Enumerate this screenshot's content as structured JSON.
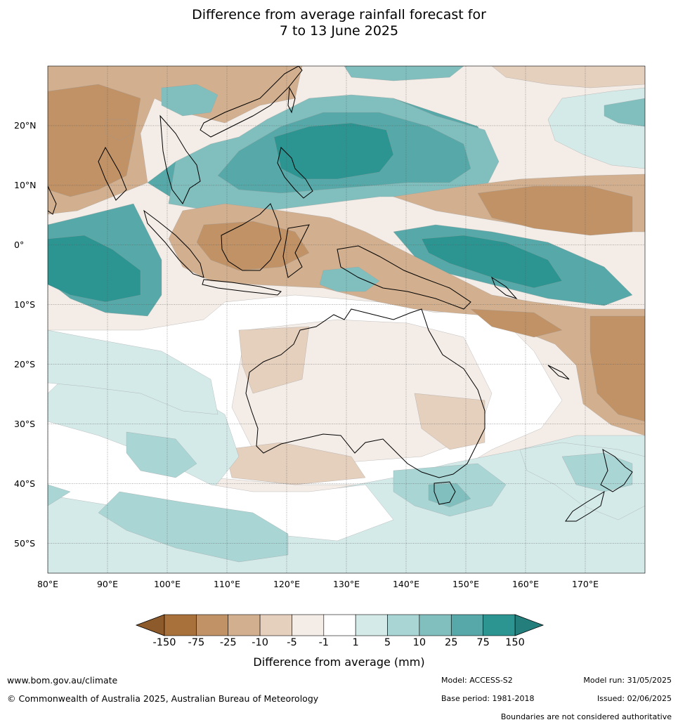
{
  "title": {
    "line1": "Difference from average rainfall forecast for",
    "line2": "7 to 13 June 2025"
  },
  "map": {
    "lon_range": [
      80,
      180
    ],
    "lat_range": [
      -55,
      30
    ],
    "lat_labels": [
      {
        "lat": 20,
        "text": "20°N"
      },
      {
        "lat": 10,
        "text": "10°N"
      },
      {
        "lat": 0,
        "text": "0°"
      },
      {
        "lat": -10,
        "text": "10°S"
      },
      {
        "lat": -20,
        "text": "20°S"
      },
      {
        "lat": -30,
        "text": "30°S"
      },
      {
        "lat": -40,
        "text": "40°S"
      },
      {
        "lat": -50,
        "text": "50°S"
      }
    ],
    "lon_labels": [
      {
        "lon": 80,
        "text": "80°E"
      },
      {
        "lon": 90,
        "text": "90°E"
      },
      {
        "lon": 100,
        "text": "100°E"
      },
      {
        "lon": 110,
        "text": "110°E"
      },
      {
        "lon": 120,
        "text": "120°E"
      },
      {
        "lon": 130,
        "text": "130°E"
      },
      {
        "lon": 140,
        "text": "140°E"
      },
      {
        "lon": 150,
        "text": "150°E"
      },
      {
        "lon": 160,
        "text": "160°E"
      },
      {
        "lon": 170,
        "text": "170°E"
      }
    ],
    "grid": true
  },
  "colorbar": {
    "title": "Difference from average (mm)",
    "ticks": [
      "-150",
      "-75",
      "-25",
      "-10",
      "-5",
      "-1",
      "1",
      "5",
      "10",
      "25",
      "75",
      "150"
    ],
    "colors": [
      "#a8703a",
      "#c09266",
      "#d2b08f",
      "#e5cfbd",
      "#f4ece6",
      "#ffffff",
      "#d4eae9",
      "#a9d5d4",
      "#80bfbe",
      "#56a9a8",
      "#2c9592"
    ],
    "extend_low_color": "#8c5a2b",
    "extend_high_color": "#247f7c"
  },
  "footer": {
    "website": "www.bom.gov.au/climate",
    "copyright": "© Commonwealth of Australia 2025, Australian Bureau of Meteorology",
    "model": "Model: ACCESS-S2",
    "base_period": "Base period: 1981-2018",
    "model_run": "Model run: 31/05/2025",
    "issued": "Issued: 02/06/2025",
    "disclaimer": "Boundaries are not considered authoritative"
  }
}
